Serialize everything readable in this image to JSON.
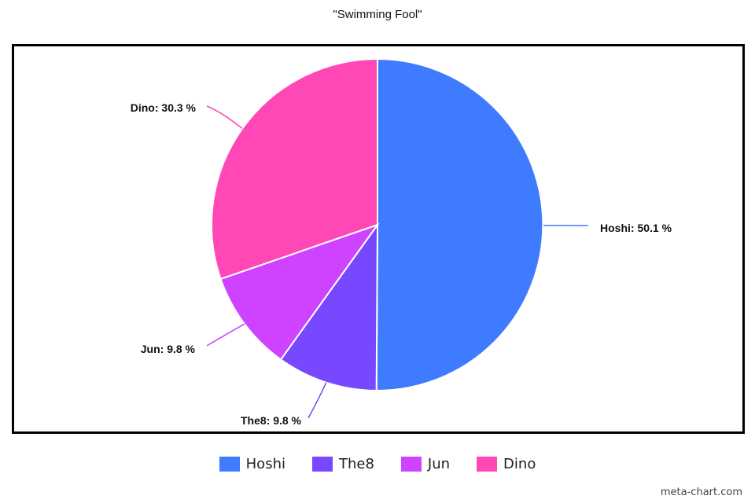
{
  "chart_data": {
    "type": "pie",
    "title": "\"Swimming Fool\"",
    "slices": [
      {
        "name": "Hoshi",
        "value": 50.1,
        "label": "Hoshi: 50.1 %",
        "color": "#3f7bff"
      },
      {
        "name": "The8",
        "value": 9.8,
        "label": "The8: 9.8 %",
        "color": "#7748ff"
      },
      {
        "name": "Jun",
        "value": 9.8,
        "label": "Jun: 9.8 %",
        "color": "#cf42ff"
      },
      {
        "name": "Dino",
        "value": 30.3,
        "label": "Dino: 30.3 %",
        "color": "#ff47b5"
      }
    ],
    "legend_position": "bottom"
  },
  "legend": {
    "items": [
      {
        "label": "Hoshi",
        "color": "#3f7bff"
      },
      {
        "label": "The8",
        "color": "#7748ff"
      },
      {
        "label": "Jun",
        "color": "#cf42ff"
      },
      {
        "label": "Dino",
        "color": "#ff47b5"
      }
    ]
  },
  "credit": "meta-chart.com"
}
